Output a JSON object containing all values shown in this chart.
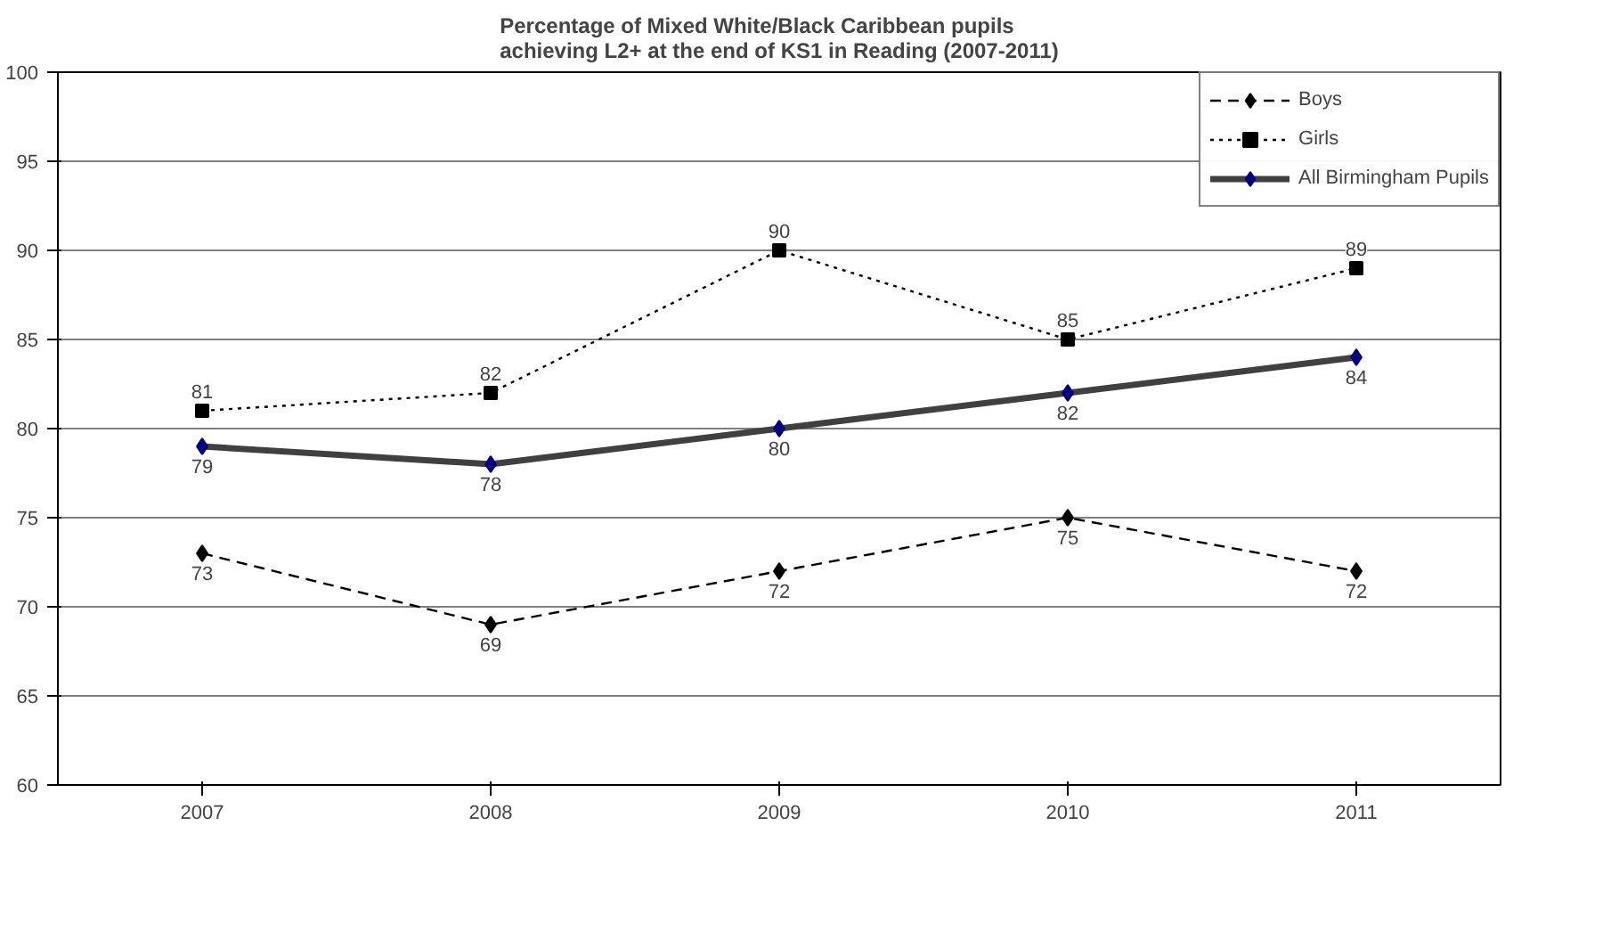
{
  "chart_data": {
    "type": "line",
    "title": "Percentage of Mixed White/Black Caribbean pupils\nachieving L2+ at the end of KS1 in Reading (2007-2011)",
    "categories": [
      "2007",
      "2008",
      "2009",
      "2010",
      "2011"
    ],
    "series": [
      {
        "name": "Boys",
        "color": "#000000",
        "marker": "diamond",
        "line_style": "dashed",
        "values": [
          73,
          69,
          72,
          75,
          72
        ]
      },
      {
        "name": "Girls",
        "color": "#000000",
        "marker": "square",
        "line_style": "dotted",
        "values": [
          81,
          82,
          90,
          85,
          89
        ]
      },
      {
        "name": "All Birmingham Pupils",
        "color": "#404040",
        "marker": "diamond",
        "line_style": "solid",
        "values": [
          79,
          78,
          80,
          82,
          84
        ]
      }
    ],
    "ylim": [
      60,
      100
    ],
    "yticks": [
      60,
      65,
      70,
      75,
      80,
      85,
      90,
      95,
      100
    ],
    "grid": "y",
    "legend": "top right",
    "data_labels": true
  }
}
